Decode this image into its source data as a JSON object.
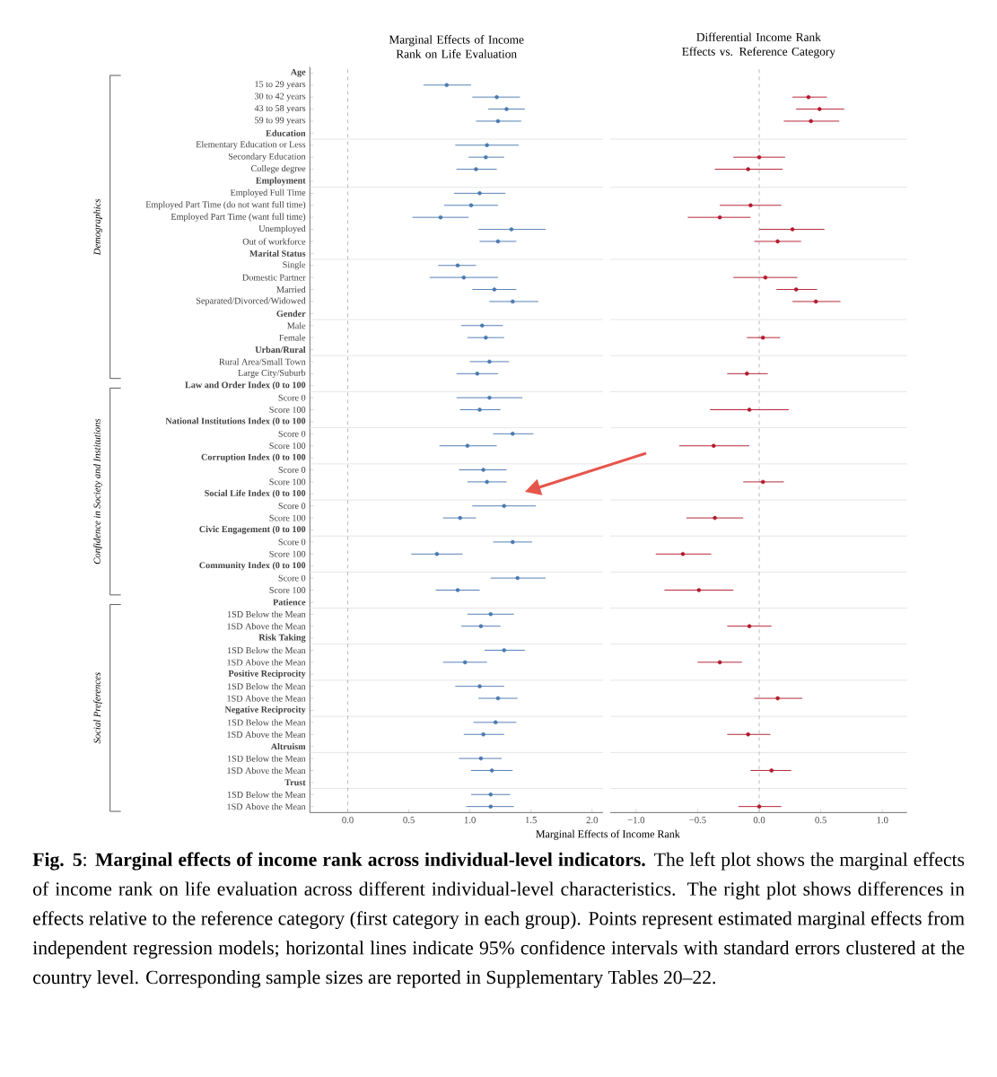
{
  "chart_data": [
    {
      "type": "scatter",
      "orientation": "horizontal",
      "title": "Marginal Effects of Income Rank on Life Evaluation",
      "xlabel": "Marginal Effects of Income Rank",
      "color": "#4a79b0",
      "marker": "circle",
      "categories": [
        "Age",
        "15 to 29 years",
        "30 to 42 years",
        "43 to 58 years",
        "59 to 99 years",
        "Education",
        "Elementary Education or Less",
        "Secondary Education",
        "College degree",
        "Employment",
        "Employed Full Time",
        "Employed Part Time (do not want full time)",
        "Employed Part Time (want full time)",
        "Unemployed",
        "Out of workforce",
        "Marital Status",
        "Single",
        "Domestic Partner",
        "Married",
        "Separated/Divorced/Widowed",
        "Gender",
        "Male",
        "Female",
        "Urban/Rural",
        "Rural Area/Small Town",
        "Large City/Suburb",
        "Law and Order Index (0 to 100",
        "Score 0",
        "Score 100",
        "National Institutions Index (0 to 100",
        "Score 0",
        "Score 100",
        "Corruption Index (0 to 100",
        "Score 0",
        "Score 100",
        "Social Life Index (0 to 100",
        "Score 0",
        "Score 100",
        "Civic Engagement (0 to 100",
        "Score 0",
        "Score 100",
        "Community Index (0 to 100",
        "Score 0",
        "Score 100",
        "Patience",
        "1SD Below the Mean",
        "1SD Above the Mean",
        "Risk Taking",
        "1SD Below the Mean",
        "1SD Above the Mean",
        "Positive Reciprocity",
        "1SD Below the Mean",
        "1SD Above the Mean",
        "Negative Reciprocity",
        "1SD Below the Mean",
        "1SD Above the Mean",
        "Altruism",
        "1SD Below the Mean",
        "1SD Above the Mean",
        "Trust",
        "1SD Below the Mean",
        "1SD Above the Mean"
      ],
      "values": [
        null,
        0.81,
        1.22,
        1.3,
        1.23,
        null,
        1.14,
        1.13,
        1.05,
        null,
        1.08,
        1.01,
        0.76,
        1.34,
        1.23,
        null,
        0.9,
        0.95,
        1.2,
        1.35,
        null,
        1.1,
        1.13,
        null,
        1.16,
        1.06,
        null,
        1.16,
        1.08,
        null,
        1.35,
        0.98,
        null,
        1.11,
        1.14,
        null,
        1.28,
        0.92,
        null,
        1.35,
        0.73,
        null,
        1.39,
        0.9,
        null,
        1.17,
        1.09,
        null,
        1.28,
        0.96,
        null,
        1.08,
        1.23,
        null,
        1.21,
        1.11,
        null,
        1.09,
        1.18,
        null,
        1.17,
        1.17
      ],
      "errors": [
        null,
        [
          0.62,
          1.01
        ],
        [
          1.02,
          1.41
        ],
        [
          1.15,
          1.45
        ],
        [
          1.05,
          1.42
        ],
        null,
        [
          0.88,
          1.4
        ],
        [
          0.99,
          1.28
        ],
        [
          0.89,
          1.22
        ],
        null,
        [
          0.87,
          1.29
        ],
        [
          0.79,
          1.23
        ],
        [
          0.53,
          0.99
        ],
        [
          1.07,
          1.62
        ],
        [
          1.08,
          1.38
        ],
        null,
        [
          0.74,
          1.05
        ],
        [
          0.67,
          1.23
        ],
        [
          1.02,
          1.38
        ],
        [
          1.16,
          1.56
        ],
        null,
        [
          0.93,
          1.27
        ],
        [
          0.98,
          1.28
        ],
        null,
        [
          1.0,
          1.32
        ],
        [
          0.89,
          1.23
        ],
        null,
        [
          0.89,
          1.43
        ],
        [
          0.92,
          1.25
        ],
        null,
        [
          1.19,
          1.52
        ],
        [
          0.75,
          1.22
        ],
        null,
        [
          0.91,
          1.3
        ],
        [
          0.98,
          1.3
        ],
        null,
        [
          1.02,
          1.54
        ],
        [
          0.78,
          1.05
        ],
        null,
        [
          1.19,
          1.51
        ],
        [
          0.52,
          0.94
        ],
        null,
        [
          1.17,
          1.62
        ],
        [
          0.72,
          1.08
        ],
        null,
        [
          0.98,
          1.36
        ],
        [
          0.93,
          1.25
        ],
        null,
        [
          1.12,
          1.45
        ],
        [
          0.78,
          1.14
        ],
        null,
        [
          0.88,
          1.28
        ],
        [
          1.07,
          1.39
        ],
        null,
        [
          1.03,
          1.38
        ],
        [
          0.95,
          1.28
        ],
        null,
        [
          0.91,
          1.26
        ],
        [
          1.01,
          1.35
        ],
        null,
        [
          1.01,
          1.33
        ],
        [
          0.97,
          1.36
        ]
      ],
      "xlim": [
        -0.31,
        2.09
      ],
      "xticks": [
        {
          "value": 0,
          "label": "0.0"
        },
        {
          "value": 0.5,
          "label": "0.5"
        },
        {
          "value": 1,
          "label": "1.0"
        },
        {
          "value": 1.5,
          "label": "1.5"
        },
        {
          "value": 2,
          "label": "2.0"
        }
      ],
      "ref_lines": [
        {
          "axis": "x",
          "value": 0,
          "color": "#b5b5b5",
          "line_style": "dashed"
        }
      ],
      "annotations": [
        "Demographics",
        "Confidence in Society and Institutions",
        "Social Preferences",
        "**Fig. 5**: **Marginal effects of income rank across individual-level indicators.** The left plot shows the marginal effects of income rank on life evaluation across different individual-level characteristics. The right plot shows differences in effects relative to the reference category (first category in each group). Points represent estimated marginal effects from independent regression models; horizontal lines indicate 95% confidence intervals with standard errors clustered at the country level. Corresponding sample sizes are reported in Supplementary Tables 20–22."
      ]
    },
    {
      "type": "scatter",
      "orientation": "horizontal",
      "title": "Differential Income Rank Effects vs. Reference Category",
      "color": "#b2182b",
      "marker": "circle",
      "tick_labels": "x",
      "categories": [
        null,
        null,
        null,
        null,
        null,
        null,
        null,
        null,
        null,
        null,
        null,
        null,
        null,
        null,
        null,
        null,
        null,
        null,
        null,
        null,
        null,
        null,
        null,
        null,
        null,
        null,
        null,
        null,
        null,
        null,
        null,
        null,
        null,
        null,
        null,
        null,
        null,
        null,
        null,
        null,
        null,
        null,
        null,
        null,
        null,
        null,
        null,
        null,
        null,
        null,
        null,
        null,
        null,
        null,
        null,
        null,
        null,
        null,
        null,
        null,
        null,
        null
      ],
      "values": [
        null,
        null,
        0.4,
        0.49,
        0.42,
        null,
        null,
        0.0,
        -0.09,
        null,
        null,
        -0.07,
        -0.32,
        0.27,
        0.15,
        null,
        null,
        0.05,
        0.3,
        0.46,
        null,
        null,
        0.03,
        null,
        null,
        -0.1,
        null,
        null,
        -0.08,
        null,
        null,
        -0.37,
        null,
        null,
        0.03,
        null,
        null,
        -0.36,
        null,
        null,
        -0.62,
        null,
        null,
        -0.49,
        null,
        null,
        -0.08,
        null,
        null,
        -0.32,
        null,
        null,
        0.15,
        null,
        null,
        -0.09,
        null,
        null,
        0.1,
        null,
        null,
        0.0
      ],
      "errors": [
        null,
        null,
        [
          0.27,
          0.55
        ],
        [
          0.3,
          0.69
        ],
        [
          0.2,
          0.65
        ],
        null,
        null,
        [
          -0.21,
          0.21
        ],
        [
          -0.36,
          0.19
        ],
        null,
        null,
        [
          -0.32,
          0.18
        ],
        [
          -0.58,
          -0.07
        ],
        [
          0.0,
          0.53
        ],
        [
          -0.04,
          0.34
        ],
        null,
        null,
        [
          -0.21,
          0.31
        ],
        [
          0.14,
          0.47
        ],
        [
          0.27,
          0.66
        ],
        null,
        null,
        [
          -0.1,
          0.17
        ],
        null,
        null,
        [
          -0.26,
          0.07
        ],
        null,
        null,
        [
          -0.4,
          0.24
        ],
        null,
        null,
        [
          -0.65,
          -0.08
        ],
        null,
        null,
        [
          -0.13,
          0.2
        ],
        null,
        null,
        [
          -0.59,
          -0.13
        ],
        null,
        null,
        [
          -0.84,
          -0.39
        ],
        null,
        null,
        [
          -0.77,
          -0.21
        ],
        null,
        null,
        [
          -0.26,
          0.1
        ],
        null,
        null,
        [
          -0.5,
          -0.14
        ],
        null,
        null,
        [
          -0.04,
          0.35
        ],
        null,
        null,
        [
          -0.26,
          0.09
        ],
        null,
        null,
        [
          -0.07,
          0.26
        ],
        null,
        null,
        [
          -0.17,
          0.18
        ]
      ],
      "xlim": [
        -1.21,
        1.2
      ],
      "xticks": [
        {
          "value": -1,
          "label": "−1.0"
        },
        {
          "value": -0.5,
          "label": "−0.5"
        },
        {
          "value": 0,
          "label": "0.0"
        },
        {
          "value": 0.5,
          "label": "0.5"
        },
        {
          "value": 1,
          "label": "1.0"
        }
      ],
      "ref_lines": [
        {
          "axis": "x",
          "value": 0,
          "color": "#b5b5b5",
          "line_style": "dashed"
        }
      ]
    }
  ]
}
